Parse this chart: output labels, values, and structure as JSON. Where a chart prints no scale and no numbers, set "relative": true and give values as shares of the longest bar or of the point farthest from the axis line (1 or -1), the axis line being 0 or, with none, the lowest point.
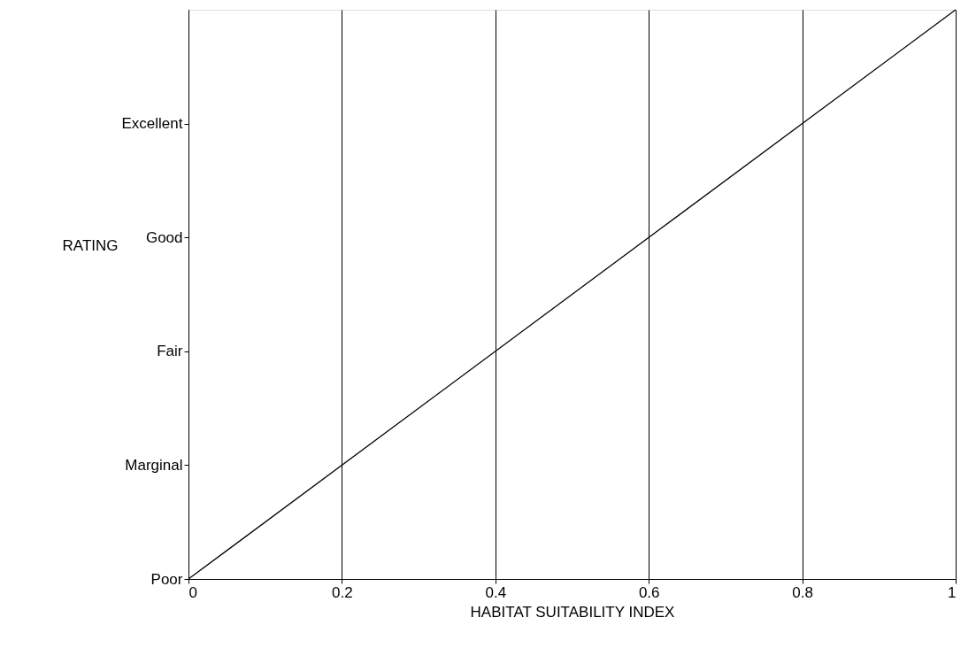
{
  "chart_data": {
    "type": "line",
    "xlabel": "HABITAT SUITABILITY INDEX",
    "ylabel": "RATING",
    "x": [
      0,
      1
    ],
    "series": [
      {
        "color": "#000000",
        "values": [
          0,
          1
        ]
      }
    ],
    "xlim": [
      0,
      1
    ],
    "xticks": [
      0,
      0.2,
      0.4,
      0.6,
      0.8,
      1
    ],
    "relative": true,
    "annotations": [
      "Poor",
      "Marginal",
      "Fair",
      "Good",
      "Excellent"
    ],
    "grid": "x",
    "marker": "none",
    "line_style": "solid"
  }
}
